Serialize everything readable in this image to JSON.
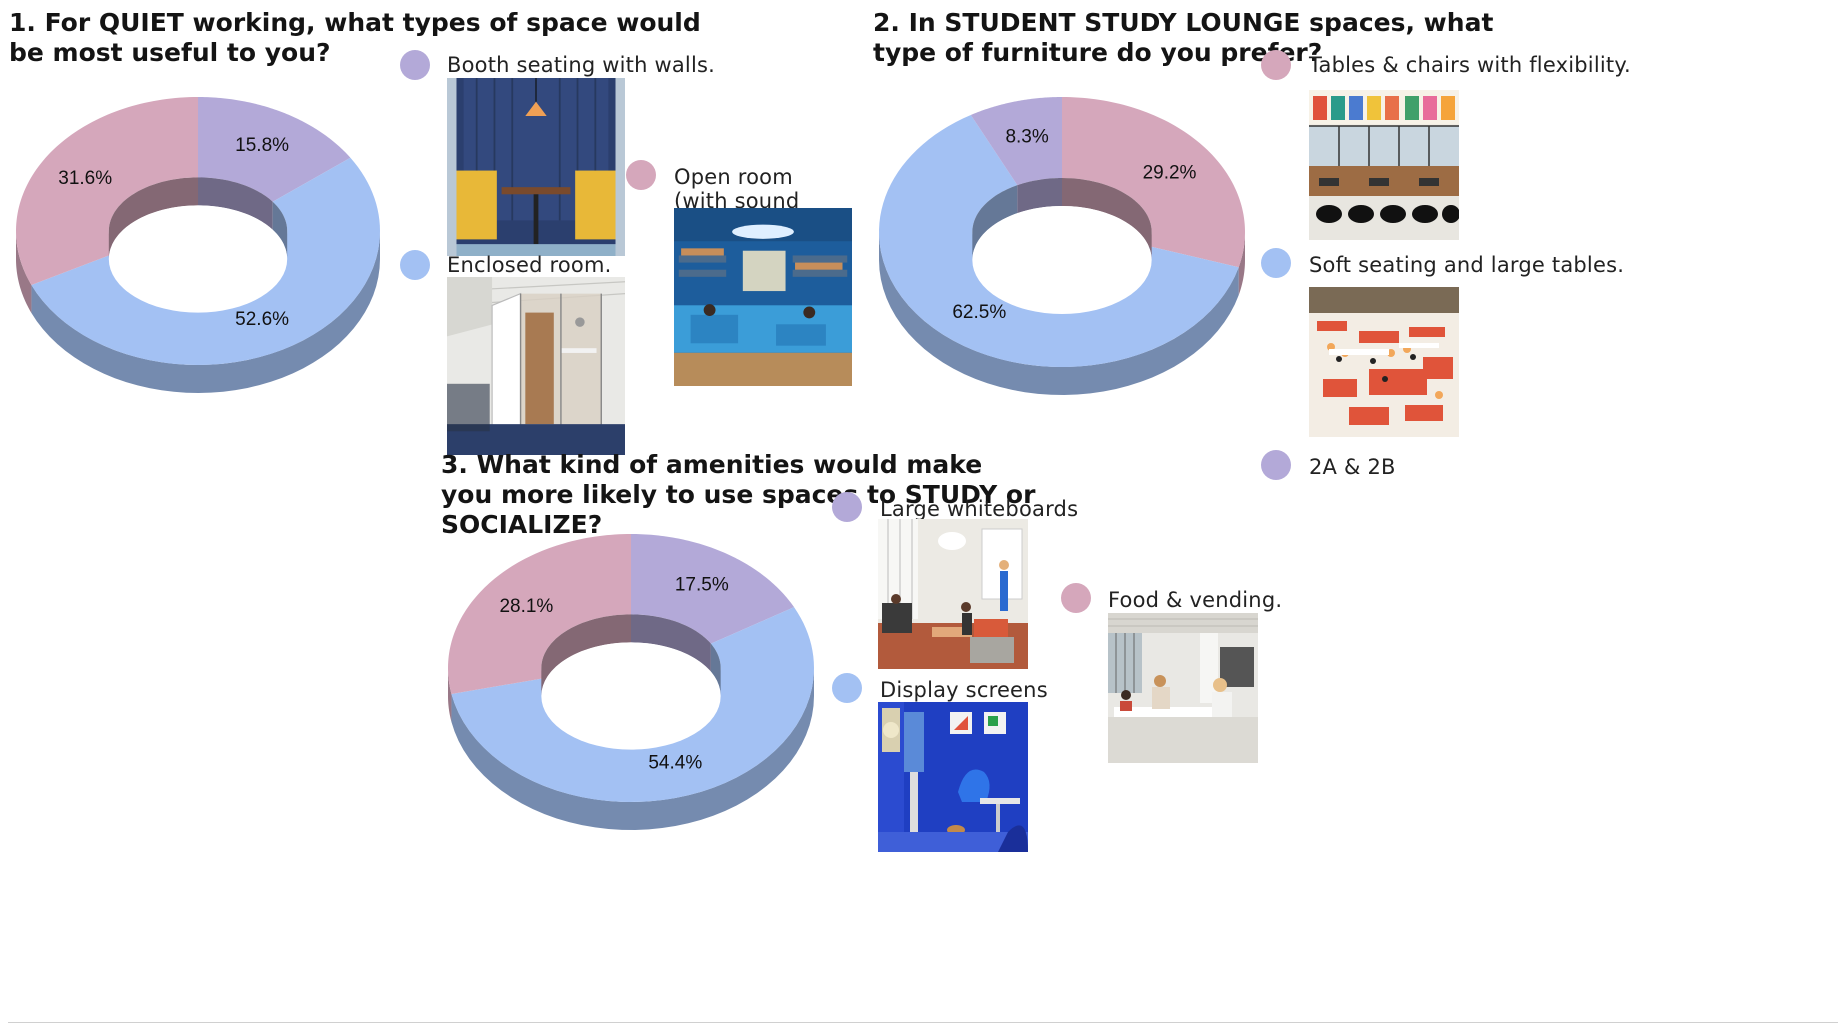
{
  "colors": {
    "lavender": "#b3a9d8",
    "blue": "#a3c1f3",
    "pink": "#d5a7bb",
    "blue_side": "#7589b5",
    "pink_side": "#9c7b8a",
    "lavender_side": "#857da3"
  },
  "q1": {
    "title": "1. For QUIET working, what types of space would be most useful to you?",
    "legend": [
      {
        "label": "Booth seating with walls.",
        "color": "lavender",
        "photo": "blue-booth-photo"
      },
      {
        "label": "Enclosed room.",
        "color": "blue",
        "photo": "glass-room-photo"
      },
      {
        "label": "Open room (with sound dampening).",
        "color": "pink",
        "photo": "blue-lounge-photo"
      }
    ]
  },
  "q2": {
    "title": "2. In STUDENT STUDY LOUNGE spaces, what type of furniture do you prefer?",
    "legend": [
      {
        "label": "Tables & chairs with flexibility.",
        "color": "pink",
        "photo": "cafeteria-photo"
      },
      {
        "label": "Soft seating and large tables.",
        "color": "blue",
        "photo": "red-sofas-photo"
      },
      {
        "label": "2A & 2B",
        "color": "lavender"
      }
    ]
  },
  "q3": {
    "title": "3. What kind of amenities would make you more likely to use spaces to STUDY or SOCIALIZE?",
    "legend": [
      {
        "label": "Large whiteboards",
        "color": "lavender",
        "photo": "whiteboard-room-photo"
      },
      {
        "label": "Display screens",
        "color": "blue",
        "photo": "display-room-photo"
      },
      {
        "label": "Food & vending.",
        "color": "pink",
        "photo": "dining-photo"
      }
    ]
  },
  "chart_data": [
    {
      "type": "pie",
      "title": "1. For QUIET working, what types of space would be most useful to you?",
      "categories": [
        "Booth seating with walls.",
        "Enclosed room.",
        "Open room (with sound dampening)."
      ],
      "values": [
        15.8,
        52.6,
        31.6
      ],
      "labels": [
        "15.8%",
        "52.6%",
        "31.6%"
      ],
      "colors": [
        "#b3a9d8",
        "#a3c1f3",
        "#d5a7bb"
      ]
    },
    {
      "type": "pie",
      "title": "2. In STUDENT STUDY LOUNGE spaces, what type of furniture do you prefer?",
      "categories": [
        "Tables & chairs with flexibility.",
        "Soft seating and large tables.",
        "2A & 2B"
      ],
      "values": [
        29.2,
        62.5,
        8.3
      ],
      "labels": [
        "29.2%",
        "62.5%",
        "8.3%"
      ],
      "colors": [
        "#d5a7bb",
        "#a3c1f3",
        "#b3a9d8"
      ]
    },
    {
      "type": "pie",
      "title": "3. What kind of amenities would make you more likely to use spaces to STUDY or SOCIALIZE?",
      "categories": [
        "Large whiteboards",
        "Display screens",
        "Food & vending."
      ],
      "values": [
        17.5,
        54.4,
        28.1
      ],
      "labels": [
        "17.5%",
        "54.4%",
        "28.1%"
      ],
      "colors": [
        "#b3a9d8",
        "#a3c1f3",
        "#d5a7bb"
      ]
    }
  ]
}
